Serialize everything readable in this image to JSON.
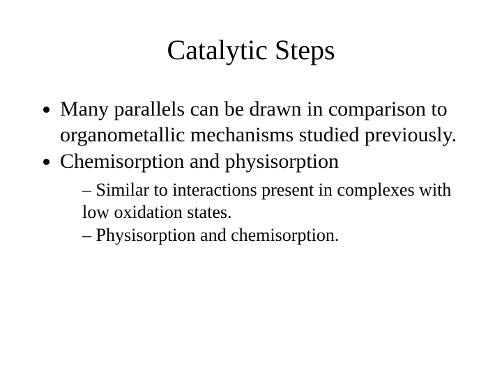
{
  "title": "Catalytic Steps",
  "bullets": {
    "b1": "Many parallels can be drawn in comparison to organometallic mechanisms studied previously.",
    "b2": "Chemisorption and physisorption",
    "b2_sub": {
      "s1": "Similar to interactions present in complexes with low oxidation states.",
      "s2": "Physisorption and chemisorption."
    }
  },
  "colors": {
    "background": "#ffffff",
    "text": "#000000"
  },
  "typography": {
    "title_fontsize": 40,
    "body_fontsize": 30,
    "sub_fontsize": 26,
    "font_family": "Times New Roman"
  }
}
